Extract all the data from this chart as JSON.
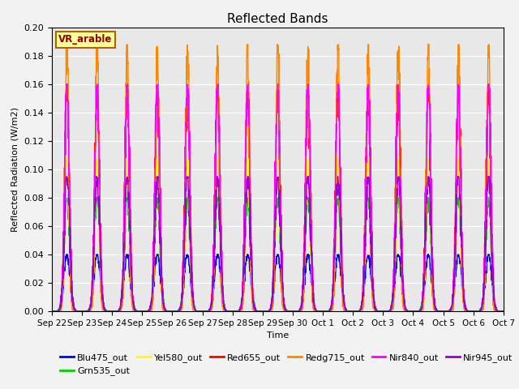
{
  "title": "Reflected Bands",
  "xlabel": "Time",
  "ylabel": "Reflected Radiation (W/m2)",
  "annotation": "VR_arable",
  "ylim": [
    0,
    0.2
  ],
  "series": [
    {
      "label": "Blu475_out",
      "color": "#0000ff",
      "peak": 0.04,
      "sigma": 0.1
    },
    {
      "label": "Grn535_out",
      "color": "#00cc00",
      "peak": 0.08,
      "sigma": 0.09
    },
    {
      "label": "Yel580_out",
      "color": "#ffff00",
      "peak": 0.108,
      "sigma": 0.075
    },
    {
      "label": "Red655_out",
      "color": "#ff0000",
      "peak": 0.158,
      "sigma": 0.075
    },
    {
      "label": "Redg715_out",
      "color": "#ff8800",
      "peak": 0.188,
      "sigma": 0.06
    },
    {
      "label": "Nir840_out",
      "color": "#ff00ff",
      "peak": 0.16,
      "sigma": 0.078
    },
    {
      "label": "Nir945_out",
      "color": "#9900cc",
      "peak": 0.095,
      "sigma": 0.085
    }
  ],
  "n_days": 15,
  "points_per_day": 144,
  "background_color": "#e8e8e8",
  "grid_color": "#ffffff",
  "tick_labels": [
    "Sep 22",
    "Sep 23",
    "Sep 24",
    "Sep 25",
    "Sep 26",
    "Sep 27",
    "Sep 28",
    "Sep 29",
    "Sep 30",
    "Oct 1",
    "Oct 2",
    "Oct 3",
    "Oct 4",
    "Oct 5",
    "Oct 6",
    "Oct 7"
  ],
  "annotation_bbox": {
    "facecolor": "#ffff99",
    "edgecolor": "#aa6600"
  },
  "linewidth": 1.0,
  "fig_width": 6.4,
  "fig_height": 4.8,
  "dpi": 100
}
